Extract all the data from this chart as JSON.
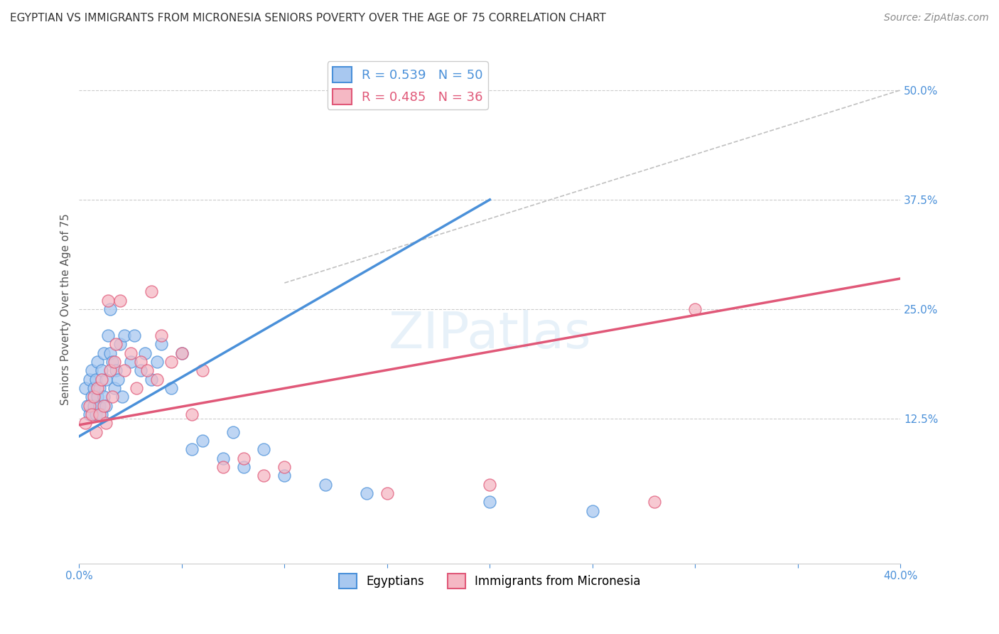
{
  "title": "EGYPTIAN VS IMMIGRANTS FROM MICRONESIA SENIORS POVERTY OVER THE AGE OF 75 CORRELATION CHART",
  "source": "Source: ZipAtlas.com",
  "ylabel": "Seniors Poverty Over the Age of 75",
  "xlim": [
    0.0,
    0.4
  ],
  "ylim": [
    -0.04,
    0.54
  ],
  "xticks": [
    0.0,
    0.05,
    0.1,
    0.15,
    0.2,
    0.25,
    0.3,
    0.35,
    0.4
  ],
  "xticklabels": [
    "0.0%",
    "",
    "",
    "",
    "",
    "",
    "",
    "",
    "40.0%"
  ],
  "ytick_positions": [
    0.125,
    0.25,
    0.375,
    0.5
  ],
  "ytick_labels": [
    "12.5%",
    "25.0%",
    "37.5%",
    "50.0%"
  ],
  "blue_R": 0.539,
  "blue_N": 50,
  "pink_R": 0.485,
  "pink_N": 36,
  "blue_color": "#a8c8f0",
  "blue_line_color": "#4a90d9",
  "pink_color": "#f5b8c4",
  "pink_line_color": "#e05878",
  "blue_scatter_x": [
    0.003,
    0.004,
    0.005,
    0.005,
    0.006,
    0.006,
    0.007,
    0.007,
    0.008,
    0.008,
    0.009,
    0.009,
    0.01,
    0.01,
    0.011,
    0.011,
    0.012,
    0.012,
    0.013,
    0.013,
    0.014,
    0.015,
    0.015,
    0.016,
    0.017,
    0.018,
    0.019,
    0.02,
    0.021,
    0.022,
    0.025,
    0.027,
    0.03,
    0.032,
    0.035,
    0.038,
    0.04,
    0.045,
    0.05,
    0.055,
    0.06,
    0.07,
    0.075,
    0.08,
    0.09,
    0.1,
    0.12,
    0.14,
    0.2,
    0.25
  ],
  "blue_scatter_y": [
    0.16,
    0.14,
    0.17,
    0.13,
    0.15,
    0.18,
    0.14,
    0.16,
    0.13,
    0.17,
    0.19,
    0.15,
    0.14,
    0.16,
    0.18,
    0.13,
    0.15,
    0.2,
    0.14,
    0.17,
    0.22,
    0.2,
    0.25,
    0.19,
    0.16,
    0.18,
    0.17,
    0.21,
    0.15,
    0.22,
    0.19,
    0.22,
    0.18,
    0.2,
    0.17,
    0.19,
    0.21,
    0.16,
    0.2,
    0.09,
    0.1,
    0.08,
    0.11,
    0.07,
    0.09,
    0.06,
    0.05,
    0.04,
    0.03,
    0.02
  ],
  "pink_scatter_x": [
    0.003,
    0.005,
    0.006,
    0.007,
    0.008,
    0.009,
    0.01,
    0.011,
    0.012,
    0.013,
    0.014,
    0.015,
    0.016,
    0.017,
    0.018,
    0.02,
    0.022,
    0.025,
    0.028,
    0.03,
    0.033,
    0.035,
    0.038,
    0.04,
    0.045,
    0.05,
    0.055,
    0.06,
    0.07,
    0.08,
    0.09,
    0.1,
    0.15,
    0.2,
    0.28,
    0.3
  ],
  "pink_scatter_y": [
    0.12,
    0.14,
    0.13,
    0.15,
    0.11,
    0.16,
    0.13,
    0.17,
    0.14,
    0.12,
    0.26,
    0.18,
    0.15,
    0.19,
    0.21,
    0.26,
    0.18,
    0.2,
    0.16,
    0.19,
    0.18,
    0.27,
    0.17,
    0.22,
    0.19,
    0.2,
    0.13,
    0.18,
    0.07,
    0.08,
    0.06,
    0.07,
    0.04,
    0.05,
    0.03,
    0.25
  ],
  "blue_line_x": [
    0.0,
    0.2
  ],
  "blue_line_y": [
    0.105,
    0.375
  ],
  "pink_line_x": [
    0.0,
    0.4
  ],
  "pink_line_y": [
    0.118,
    0.285
  ],
  "ref_line_x": [
    0.1,
    0.4
  ],
  "ref_line_y": [
    0.28,
    0.5
  ],
  "background_color": "#ffffff",
  "grid_color": "#cccccc",
  "title_fontsize": 11,
  "source_fontsize": 10,
  "legend_fontsize": 13,
  "axis_fontsize": 11
}
